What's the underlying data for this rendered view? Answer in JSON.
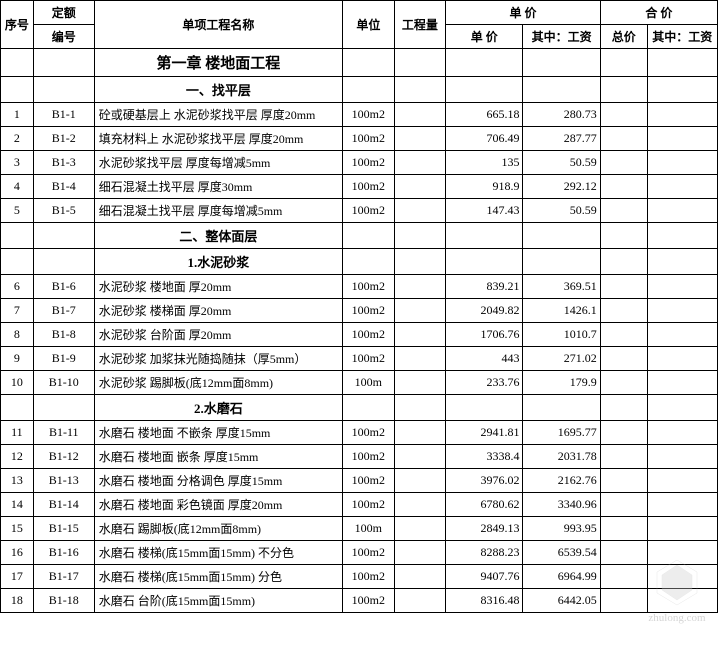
{
  "colors": {
    "border": "#000000",
    "background": "#ffffff",
    "text": "#000000",
    "watermark": "#bbbbbb"
  },
  "header": {
    "seq": "序号",
    "quota": "定额",
    "code": "编号",
    "name": "单项工程名称",
    "unit": "单位",
    "qty": "工程量",
    "unit_price_group": "单 价",
    "total_price_group": "合 价",
    "unit_price": "单 价",
    "wage": "其中：工资",
    "total": "总价",
    "total_wage": "其中：工资"
  },
  "chapter": "第一章 楼地面工程",
  "section1": "一、找平层",
  "section2": "二、整体面层",
  "sub1": "1.水泥砂浆",
  "sub2": "2.水磨石",
  "rows1": [
    {
      "seq": "1",
      "code": "B1-1",
      "name": "砼或硬基层上 水泥砂浆找平层 厚度20mm",
      "unit": "100m2",
      "qty": "",
      "price": "665.18",
      "wage": "280.73"
    },
    {
      "seq": "2",
      "code": "B1-2",
      "name": "填充材料上 水泥砂浆找平层 厚度20mm",
      "unit": "100m2",
      "qty": "",
      "price": "706.49",
      "wage": "287.77"
    },
    {
      "seq": "3",
      "code": "B1-3",
      "name": "水泥砂浆找平层 厚度每增减5mm",
      "unit": "100m2",
      "qty": "",
      "price": "135",
      "wage": "50.59"
    },
    {
      "seq": "4",
      "code": "B1-4",
      "name": "细石混凝土找平层 厚度30mm",
      "unit": "100m2",
      "qty": "",
      "price": "918.9",
      "wage": "292.12"
    },
    {
      "seq": "5",
      "code": "B1-5",
      "name": "细石混凝土找平层 厚度每增减5mm",
      "unit": "100m2",
      "qty": "",
      "price": "147.43",
      "wage": "50.59"
    }
  ],
  "rows2": [
    {
      "seq": "6",
      "code": "B1-6",
      "name": "水泥砂浆 楼地面 厚20mm",
      "unit": "100m2",
      "qty": "",
      "price": "839.21",
      "wage": "369.51"
    },
    {
      "seq": "7",
      "code": "B1-7",
      "name": "水泥砂浆 楼梯面 厚20mm",
      "unit": "100m2",
      "qty": "",
      "price": "2049.82",
      "wage": "1426.1"
    },
    {
      "seq": "8",
      "code": "B1-8",
      "name": "水泥砂浆 台阶面 厚20mm",
      "unit": "100m2",
      "qty": "",
      "price": "1706.76",
      "wage": "1010.7"
    },
    {
      "seq": "9",
      "code": "B1-9",
      "name": "水泥砂浆 加浆抹光随捣随抹（厚5mm）",
      "unit": "100m2",
      "qty": "",
      "price": "443",
      "wage": "271.02"
    },
    {
      "seq": "10",
      "code": "B1-10",
      "name": "水泥砂浆 踢脚板(底12mm面8mm)",
      "unit": "100m",
      "qty": "",
      "price": "233.76",
      "wage": "179.9"
    }
  ],
  "rows3": [
    {
      "seq": "11",
      "code": "B1-11",
      "name": "水磨石 楼地面 不嵌条 厚度15mm",
      "unit": "100m2",
      "qty": "",
      "price": "2941.81",
      "wage": "1695.77"
    },
    {
      "seq": "12",
      "code": "B1-12",
      "name": "水磨石 楼地面 嵌条 厚度15mm",
      "unit": "100m2",
      "qty": "",
      "price": "3338.4",
      "wage": "2031.78"
    },
    {
      "seq": "13",
      "code": "B1-13",
      "name": "水磨石 楼地面 分格调色 厚度15mm",
      "unit": "100m2",
      "qty": "",
      "price": "3976.02",
      "wage": "2162.76"
    },
    {
      "seq": "14",
      "code": "B1-14",
      "name": "水磨石 楼地面 彩色镜面 厚度20mm",
      "unit": "100m2",
      "qty": "",
      "price": "6780.62",
      "wage": "3340.96"
    },
    {
      "seq": "15",
      "code": "B1-15",
      "name": "水磨石 踢脚板(底12mm面8mm)",
      "unit": "100m",
      "qty": "",
      "price": "2849.13",
      "wage": "993.95"
    },
    {
      "seq": "16",
      "code": "B1-16",
      "name": "水磨石 楼梯(底15mm面15mm) 不分色",
      "unit": "100m2",
      "qty": "",
      "price": "8288.23",
      "wage": "6539.54"
    },
    {
      "seq": "17",
      "code": "B1-17",
      "name": "水磨石 楼梯(底15mm面15mm) 分色",
      "unit": "100m2",
      "qty": "",
      "price": "9407.76",
      "wage": "6964.99"
    },
    {
      "seq": "18",
      "code": "B1-18",
      "name": "水磨石 台阶(底15mm面15mm)",
      "unit": "100m2",
      "qty": "",
      "price": "8316.48",
      "wage": "6442.05"
    }
  ],
  "watermark_text": "zhulong.com"
}
